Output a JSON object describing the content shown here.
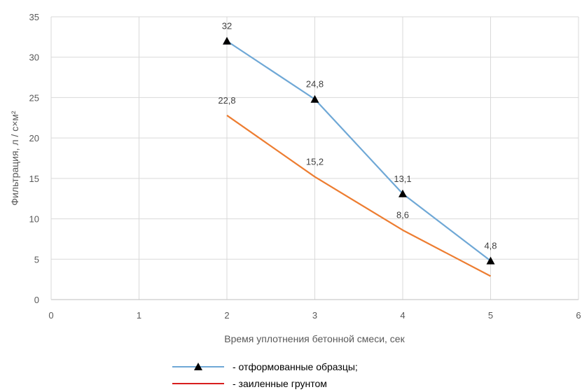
{
  "chart_data": {
    "type": "line",
    "xlabel": "Время уплотнения бетонной смеси, сек",
    "ylabel": "Фильтрация, л / с×м²",
    "xlim": [
      0,
      6
    ],
    "ylim": [
      0,
      35
    ],
    "x_ticks": [
      "0",
      "1",
      "2",
      "3",
      "4",
      "5",
      "6"
    ],
    "y_ticks": [
      "0",
      "5",
      "10",
      "15",
      "20",
      "25",
      "30",
      "35"
    ],
    "grid": true,
    "legend_position": "bottom",
    "series": [
      {
        "name": "- отформованные образцы;",
        "color": "#6fa8d6",
        "marker": "triangle",
        "x": [
          2,
          3,
          4,
          5
        ],
        "y": [
          32,
          24.8,
          13.1,
          4.8
        ],
        "labels": [
          "32",
          "24,8",
          "13,1",
          "4,8"
        ]
      },
      {
        "name": "- заиленные грунтом",
        "color": "#ed7d31",
        "legend_color": "#d81e1e",
        "marker": "none",
        "x": [
          2,
          3,
          4,
          5
        ],
        "y": [
          22.8,
          15.2,
          8.6,
          2.9
        ],
        "labels": [
          "22,8",
          "15,2",
          "8,6",
          ""
        ]
      }
    ]
  }
}
